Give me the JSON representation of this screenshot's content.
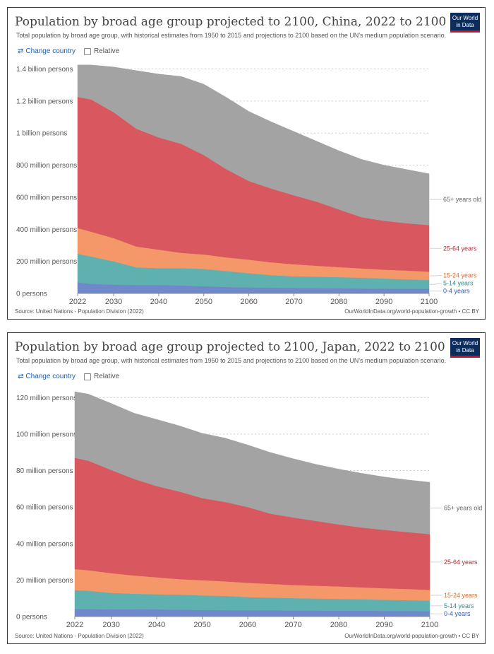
{
  "common": {
    "subtitle": "Total population by broad age group, with historical estimates from 1950 to 2015 and projections to 2100 based on the UN's medium population scenario.",
    "logo_line1": "Our World",
    "logo_line2": "in Data",
    "change_country_label": "Change country",
    "relative_label": "Relative",
    "source": "Source: United Nations - Population Division (2022)",
    "url": "OurWorldInData.org/world-population-growth • CC BY"
  },
  "colors": {
    "0-4 years": "#6f88c9",
    "5-14 years": "#5fb1b0",
    "15-24 years": "#f4986a",
    "25-64 years": "#d9585f",
    "65+ years old": "#a3a3a3",
    "label_0-4 years": "#2f5aa8",
    "label_5-14 years": "#2e8a8a",
    "label_15-24 years": "#d66a2a",
    "label_25-64 years": "#b8262f",
    "label_65+ years old": "#666666"
  },
  "chart_data": [
    {
      "type": "area",
      "stacked": true,
      "title": "Population by broad age group projected to 2100, China, 2022 to 2100",
      "x": [
        2022,
        2025,
        2030,
        2035,
        2040,
        2045,
        2050,
        2055,
        2060,
        2065,
        2070,
        2075,
        2080,
        2085,
        2090,
        2095,
        2100
      ],
      "x_ticks": [
        "2022",
        "2030",
        "2040",
        "2050",
        "2060",
        "2070",
        "2080",
        "2090",
        "2100"
      ],
      "y_ticks": [
        "0 persons",
        "200 million persons",
        "400 million persons",
        "600 million persons",
        "800 million persons",
        "1 billion persons",
        "1.2 billion persons",
        "1.4 billion persons"
      ],
      "y_tick_values": [
        0,
        200,
        400,
        600,
        800,
        1000,
        1200,
        1400
      ],
      "ylim": [
        0,
        1420
      ],
      "grid": "horizontal dotted",
      "legend": "right, inline labels",
      "series": [
        {
          "name": "0-4 years",
          "values": [
            70,
            60,
            55,
            53,
            53,
            50,
            45,
            40,
            38,
            36,
            34,
            33,
            32,
            31,
            30,
            30,
            29
          ]
        },
        {
          "name": "5-14 years",
          "values": [
            178,
            170,
            145,
            110,
            105,
            108,
            108,
            100,
            88,
            78,
            73,
            72,
            70,
            67,
            63,
            58,
            55
          ]
        },
        {
          "name": "15-24 years",
          "values": [
            160,
            155,
            145,
            130,
            115,
            95,
            90,
            85,
            85,
            80,
            75,
            68,
            62,
            58,
            55,
            55,
            52
          ]
        },
        {
          "name": "25-64 years",
          "values": [
            817,
            825,
            785,
            735,
            700,
            680,
            620,
            550,
            490,
            460,
            430,
            400,
            360,
            320,
            305,
            295,
            290
          ]
        },
        {
          "name": "65+ years old",
          "values": [
            200,
            215,
            282,
            362,
            395,
            420,
            442,
            448,
            434,
            416,
            398,
            377,
            366,
            360,
            347,
            335,
            320
          ]
        }
      ]
    },
    {
      "type": "area",
      "stacked": true,
      "title": "Population by broad age group projected to 2100, Japan, 2022 to 2100",
      "x": [
        2022,
        2025,
        2030,
        2035,
        2040,
        2045,
        2050,
        2055,
        2060,
        2065,
        2070,
        2075,
        2080,
        2085,
        2090,
        2095,
        2100
      ],
      "x_ticks": [
        "2022",
        "2030",
        "2040",
        "2050",
        "2060",
        "2070",
        "2080",
        "2090",
        "2100"
      ],
      "y_ticks": [
        "0 persons",
        "20 million persons",
        "40 million persons",
        "60 million persons",
        "80 million persons",
        "100 million persons",
        "120 million persons"
      ],
      "y_tick_values": [
        0,
        20,
        40,
        60,
        80,
        100,
        120
      ],
      "ylim": [
        0,
        124
      ],
      "grid": "horizontal dotted",
      "legend": "right, inline labels",
      "series": [
        {
          "name": "0-4 years",
          "values": [
            4.2,
            4.1,
            4.0,
            4.0,
            3.9,
            3.8,
            3.6,
            3.5,
            3.4,
            3.4,
            3.3,
            3.3,
            3.2,
            3.2,
            3.1,
            3.1,
            3.0
          ]
        },
        {
          "name": "5-14 years",
          "values": [
            10.3,
            10.0,
            9.0,
            8.5,
            8.3,
            8.2,
            8.0,
            7.8,
            7.3,
            7.0,
            6.8,
            6.6,
            6.5,
            6.3,
            6.1,
            5.9,
            5.7
          ]
        },
        {
          "name": "15-24 years",
          "values": [
            11.5,
            11.3,
            10.8,
            10.0,
            9.3,
            8.5,
            8.3,
            8.0,
            7.8,
            7.5,
            7.2,
            7.0,
            6.8,
            6.5,
            6.3,
            6.1,
            5.9
          ]
        },
        {
          "name": "25-64 years",
          "values": [
            61.0,
            60.0,
            56.5,
            53.0,
            50.0,
            48.0,
            45.0,
            43.5,
            41.5,
            38.5,
            37.0,
            35.5,
            34.0,
            32.8,
            32.0,
            31.2,
            30.6
          ]
        },
        {
          "name": "65+ years old",
          "values": [
            36.2,
            36.5,
            36.5,
            36.0,
            36.5,
            36.0,
            35.5,
            35.0,
            34.0,
            33.5,
            32.2,
            31.0,
            30.3,
            29.7,
            29.0,
            28.6,
            28.4
          ]
        }
      ]
    }
  ]
}
